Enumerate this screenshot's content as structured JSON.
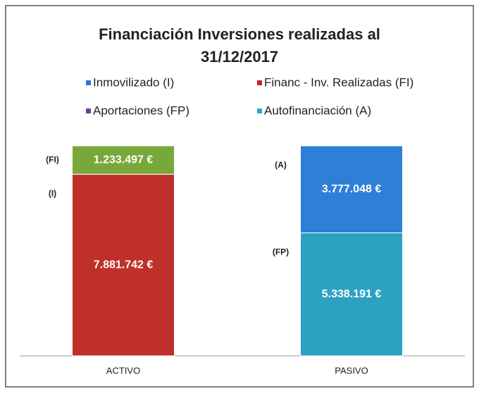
{
  "chart_data": {
    "type": "stacked_bar",
    "title": [
      "Financiación Inversiones realizadas al",
      "31/12/2017"
    ],
    "categories": [
      "ACTIVO",
      "PASIVO"
    ],
    "series": [
      {
        "name": "Inmovilizado (I)",
        "short": "(I)",
        "color": "#2e75d6",
        "bar_color": "#c0302a",
        "values": [
          7881742,
          null
        ],
        "value_labels": [
          "7.881.742 €",
          null
        ]
      },
      {
        "name": "Financ - Inv. Realizadas (FI)",
        "short": "(FI)",
        "color": "#d02020",
        "bar_color": "#78a83a",
        "values": [
          1233497,
          null
        ],
        "value_labels": [
          "1.233.497 €",
          null
        ]
      },
      {
        "name": "Aportaciones (FP)",
        "short": "(FP)",
        "color": "#6a3c9a",
        "bar_color": "#2ba2c2",
        "values": [
          null,
          5338191
        ],
        "value_labels": [
          null,
          "5.338.191 €"
        ]
      },
      {
        "name": "Autofinanciación (A)",
        "short": "(A)",
        "color": "#2aa7c8",
        "bar_color": "#2e7fd6",
        "values": [
          null,
          3777048
        ],
        "value_labels": [
          null,
          "3.777.048 €"
        ]
      }
    ]
  }
}
